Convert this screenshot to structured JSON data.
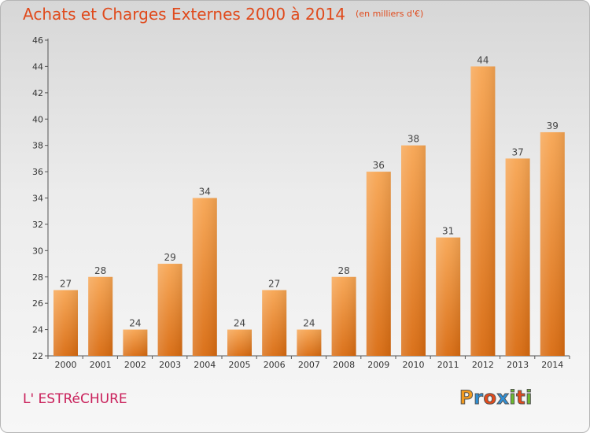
{
  "header": {
    "title": "Achats et Charges Externes 2000 à 2014",
    "unit": "(en milliers d'€)"
  },
  "footer": {
    "commune": "L' ESTRéCHURE",
    "logo_letters": [
      "P",
      "r",
      "o",
      "x",
      "i",
      "t",
      "i"
    ],
    "logo_colors": [
      "#f39a1e",
      "#2e8fd6",
      "#e64a1a",
      "#2e8fd6",
      "#6dbb2e",
      "#e64a1a",
      "#6dbb2e"
    ]
  },
  "chart_data": {
    "type": "bar",
    "categories": [
      "2000",
      "2001",
      "2002",
      "2003",
      "2004",
      "2005",
      "2006",
      "2007",
      "2008",
      "2009",
      "2010",
      "2011",
      "2012",
      "2013",
      "2014"
    ],
    "values": [
      27,
      28,
      24,
      29,
      34,
      24,
      27,
      24,
      28,
      36,
      38,
      31,
      44,
      37,
      39
    ],
    "ylim": [
      22,
      46
    ],
    "yticks": [
      22,
      24,
      26,
      28,
      30,
      32,
      34,
      36,
      38,
      40,
      42,
      44,
      46
    ],
    "grid": false,
    "bar_color": "#f08a2a"
  }
}
